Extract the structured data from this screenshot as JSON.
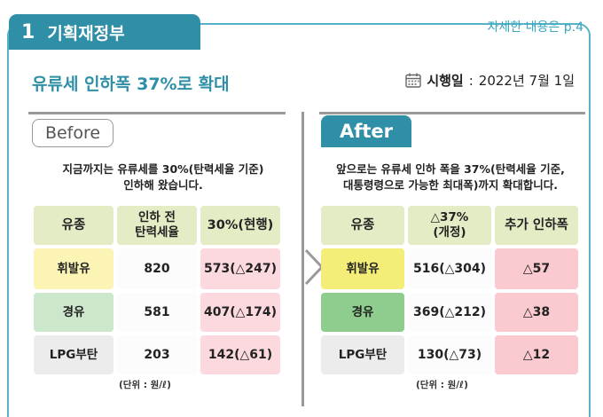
{
  "header": {
    "section_number": "1",
    "section_title": "기획재정부",
    "reference": "자세한 내용은 p.4"
  },
  "title": "유류세 인하폭 37%로 확대",
  "effective": {
    "label": "시행일",
    "colon": ":",
    "date": "2022년 7월 1일",
    "icon": "calendar-icon"
  },
  "before": {
    "badge": "Before",
    "desc_line1": "지금까지는 유류세를 30%(탄력세율 기준)",
    "desc_line2": "인하해 왔습니다.",
    "columns": [
      "유종",
      "인하 전\n탄력세율",
      "30%(현행)"
    ],
    "rows": [
      {
        "fuel": "휘발유",
        "base": "820",
        "rate": "573(△247)"
      },
      {
        "fuel": "경유",
        "base": "581",
        "rate": "407(△174)"
      },
      {
        "fuel": "LPG부탄",
        "base": "203",
        "rate": "142(△61)"
      }
    ],
    "unit": "(단위 : 원/ℓ)"
  },
  "after": {
    "badge": "After",
    "desc_line1": "앞으로는 유류세 인하 폭을 37%(탄력세율 기준,",
    "desc_line2": "대통령령으로 가능한 최대폭)까지 확대합니다.",
    "columns": [
      "유종",
      "△37%\n(개정)",
      "추가 인하폭"
    ],
    "rows": [
      {
        "fuel": "휘발유",
        "rate": "516(△304)",
        "extra": "△57"
      },
      {
        "fuel": "경유",
        "rate": "369(△212)",
        "extra": "△38"
      },
      {
        "fuel": "LPG부탄",
        "rate": "130(△73)",
        "extra": "△12"
      }
    ],
    "unit": "(단위 : 원/ℓ)"
  },
  "colors": {
    "accent": "#2f8fa6",
    "accent_light": "#54b3c8",
    "header_cell": "#e4ecc6",
    "gasoline": "#f4ee78",
    "diesel": "#8fcd8e",
    "lpg": "#ececec",
    "highlight_pink": "#fbc9d0"
  }
}
